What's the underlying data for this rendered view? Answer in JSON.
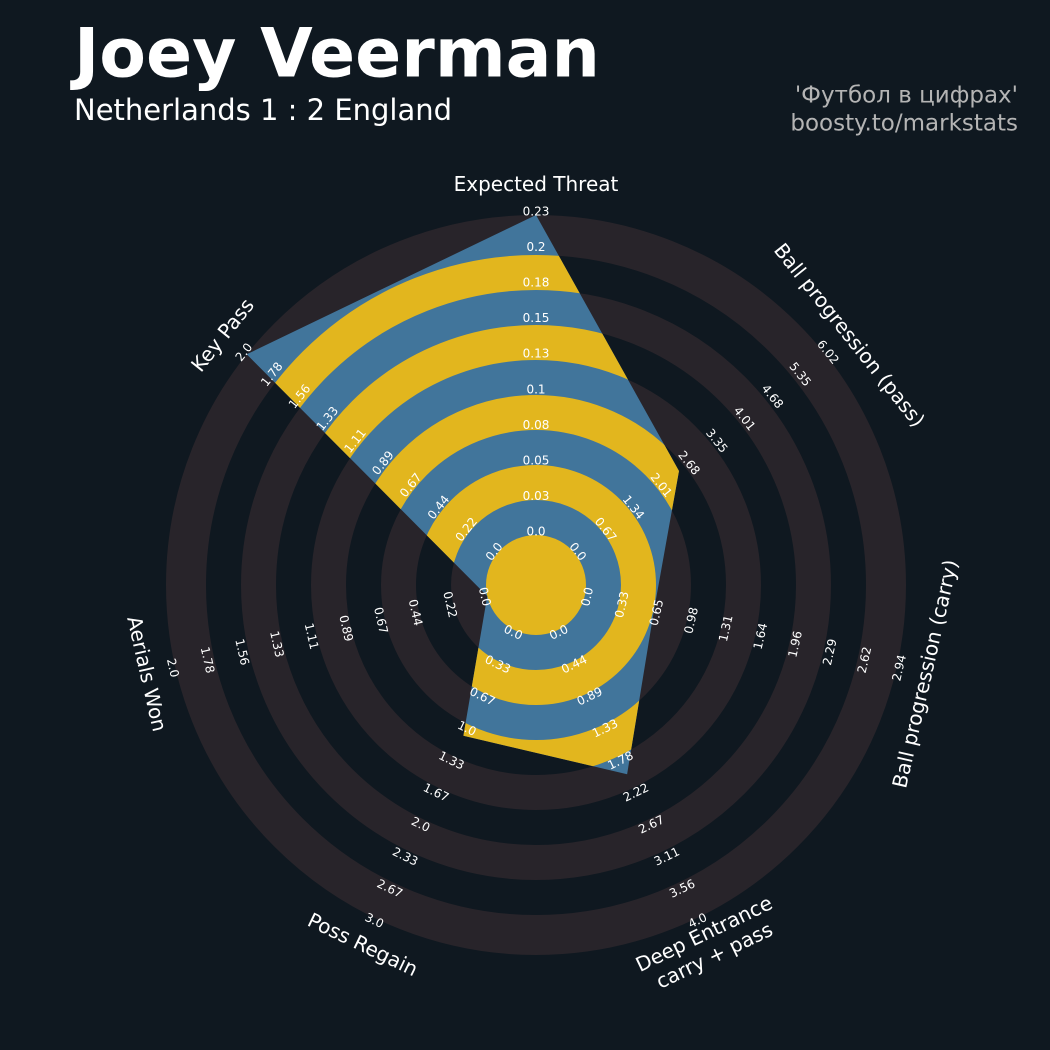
{
  "chart_data": {
    "type": "radar",
    "title": "Joey Veerman",
    "subtitle": "Netherlands 1 : 2 England",
    "credits": [
      "'Футбол в цифрах'",
      "boosty.to/markstats"
    ],
    "params": [
      [
        "Expected Threat"
      ],
      [
        "Ball progression (pass)"
      ],
      [
        "Ball progression (carry)"
      ],
      [
        "Deep Entrance",
        "carry + pass"
      ],
      [
        "Poss Regain"
      ],
      [
        "Aerials Won"
      ],
      [
        "Key Pass"
      ]
    ],
    "ranges": [
      [
        0,
        0.23
      ],
      [
        0,
        6.02
      ],
      [
        0,
        2.94
      ],
      [
        0,
        4
      ],
      [
        0,
        3
      ],
      [
        0,
        2
      ],
      [
        0,
        2
      ]
    ],
    "ticks": [
      [
        {
          "value": 0,
          "label": "0.0"
        },
        0.03,
        0.05,
        0.08,
        0.1,
        0.13,
        0.15,
        0.18,
        0.2,
        0.23
      ],
      [
        {
          "value": 0,
          "label": "0.0"
        },
        0.67,
        1.34,
        2.01,
        2.68,
        3.35,
        4.01,
        4.68,
        5.35,
        6.02
      ],
      [
        {
          "value": 0,
          "label": "0.0"
        },
        0.33,
        0.65,
        0.98,
        1.31,
        1.64,
        1.96,
        2.29,
        2.62,
        2.94
      ],
      [
        {
          "value": 0,
          "label": "0.0"
        },
        0.44,
        0.89,
        1.33,
        1.78,
        2.22,
        2.67,
        3.11,
        3.56,
        {
          "value": 4,
          "label": "4.0"
        }
      ],
      [
        {
          "value": 0,
          "label": "0.0"
        },
        0.33,
        0.67,
        {
          "value": 1,
          "label": "1.0"
        },
        1.33,
        1.67,
        {
          "value": 2,
          "label": "2.0"
        },
        2.33,
        2.67,
        {
          "value": 3,
          "label": "3.0"
        }
      ],
      [
        {
          "value": 0,
          "label": "0.0"
        },
        0.22,
        0.44,
        0.67,
        0.89,
        1.11,
        1.33,
        1.56,
        1.78,
        {
          "value": 2,
          "label": "2.0"
        }
      ],
      [
        {
          "value": 0,
          "label": "0.0"
        },
        0.22,
        0.44,
        0.67,
        0.89,
        1.11,
        1.33,
        1.56,
        1.78,
        {
          "value": 2,
          "label": "2.0"
        }
      ]
    ],
    "values": [
      0.23,
      2.5,
      0.65,
      2.0,
      1.1,
      0,
      2
    ],
    "colors": {
      "inside": "#41759b",
      "rings": "#e2b61e",
      "outside": "#28242a"
    }
  }
}
